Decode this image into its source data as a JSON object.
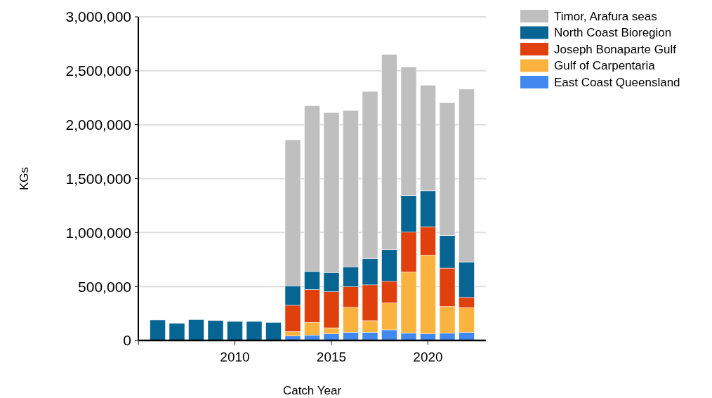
{
  "chart_data": {
    "type": "bar",
    "stacked": true,
    "xlabel": "Catch Year",
    "ylabel": "KGs",
    "x": [
      2006,
      2007,
      2008,
      2009,
      2010,
      2011,
      2012,
      2013,
      2014,
      2015,
      2016,
      2017,
      2018,
      2019,
      2020,
      2021,
      2022
    ],
    "xlim": [
      2005,
      2023
    ],
    "xticks": [
      2010,
      2015,
      2020
    ],
    "ylim": [
      0,
      3000000
    ],
    "yticks": [
      {
        "value": 0,
        "label": "0"
      },
      {
        "value": 500000,
        "label": "500,000"
      },
      {
        "value": 1000000,
        "label": "1,000,000"
      },
      {
        "value": 1500000,
        "label": "1,500,000"
      },
      {
        "value": 2000000,
        "label": "2,000,000"
      },
      {
        "value": 2500000,
        "label": "2,500,000"
      },
      {
        "value": 3000000,
        "label": "3,000,000"
      }
    ],
    "grid": "y",
    "legend": "top right",
    "series": [
      {
        "name": "East Coast Queensland",
        "color": "#4189ee",
        "values": [
          null,
          null,
          null,
          null,
          null,
          null,
          null,
          41000,
          50000,
          61000,
          76000,
          76000,
          98000,
          67000,
          61000,
          67000,
          74000
        ]
      },
      {
        "name": "Gulf of Carpentaria",
        "color": "#fbb340",
        "values": [
          null,
          null,
          null,
          null,
          null,
          null,
          null,
          42000,
          117000,
          56000,
          231000,
          107000,
          250000,
          568000,
          730000,
          248000,
          230000
        ]
      },
      {
        "name": "Joseph Bonaparte Gulf",
        "color": "#e0400b",
        "values": [
          null,
          null,
          null,
          null,
          null,
          null,
          null,
          243000,
          305000,
          335000,
          191000,
          332000,
          200000,
          369000,
          263000,
          355000,
          94000
        ]
      },
      {
        "name": "North Coast Bioregion",
        "color": "#066593",
        "values": [
          189000,
          159000,
          193000,
          185000,
          176000,
          176000,
          167000,
          181000,
          167000,
          178000,
          185000,
          242000,
          293000,
          340000,
          333000,
          302000,
          330000
        ]
      },
      {
        "name": "Timor, Arafura seas",
        "color": "#bfbfbf",
        "values": [
          null,
          null,
          null,
          null,
          null,
          null,
          null,
          1353000,
          1537000,
          1483000,
          1450000,
          1552000,
          1811000,
          1191000,
          980000,
          1232000,
          1602000
        ]
      }
    ]
  }
}
